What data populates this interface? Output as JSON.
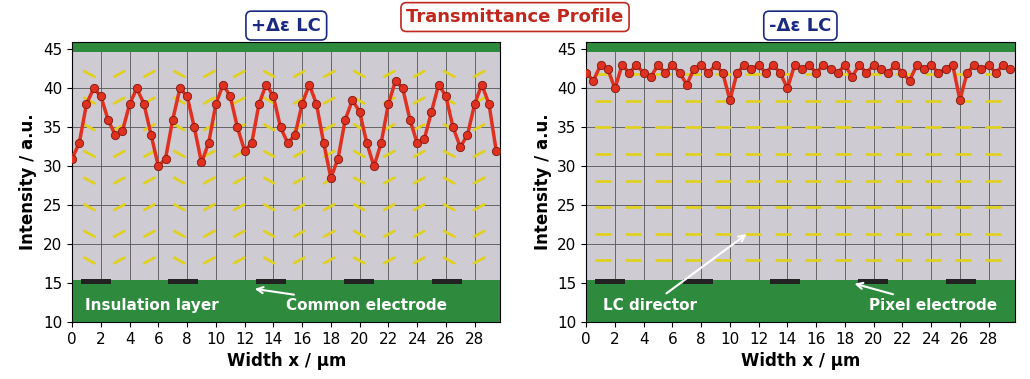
{
  "title": "Transmittance Profile",
  "chart_data": [
    {
      "type": "line",
      "title": "+Δε LC",
      "x_label": "Width x / µm",
      "y_label": "Intensity / a.u.",
      "annotations": [
        "Insulation layer",
        "Common electrode"
      ],
      "x": [
        0,
        0.5,
        1,
        1.5,
        2,
        2.5,
        3,
        3.5,
        4,
        4.5,
        5,
        5.5,
        6,
        6.5,
        7,
        7.5,
        8,
        8.5,
        9,
        9.5,
        10,
        10.5,
        11,
        11.5,
        12,
        12.5,
        13,
        13.5,
        14,
        14.5,
        15,
        15.5,
        16,
        16.5,
        17,
        17.5,
        18,
        18.5,
        19,
        19.5,
        20,
        20.5,
        21,
        21.5,
        22,
        22.5,
        23,
        23.5,
        24,
        24.5,
        25,
        25.5,
        26,
        26.5,
        27,
        27.5,
        28,
        28.5,
        29,
        29.5
      ],
      "series": [
        {
          "name": "Transmittance",
          "color": "#e03020",
          "marker": "o",
          "line_style": "solid",
          "values": [
            31,
            33,
            38,
            40,
            39,
            36,
            34,
            34.5,
            38,
            40,
            38,
            34,
            30,
            31,
            36,
            40,
            39,
            35,
            30.5,
            33,
            38,
            40.5,
            39,
            35,
            32,
            33,
            38,
            40.5,
            39,
            35,
            33,
            34,
            38,
            40.5,
            38,
            33,
            28.5,
            31,
            36,
            38.5,
            37,
            33,
            30,
            33,
            38,
            41,
            40,
            36,
            33,
            33.5,
            37,
            40.5,
            39,
            35,
            32.5,
            34,
            38,
            40.5,
            38,
            32
          ]
        }
      ],
      "xlim": [
        0,
        29.8
      ],
      "xticks": [
        0,
        2,
        4,
        6,
        8,
        10,
        12,
        14,
        16,
        18,
        20,
        22,
        24,
        26,
        28
      ],
      "ylim": [
        10,
        46
      ],
      "yticks": [
        10,
        15,
        20,
        25,
        30,
        35,
        40,
        45
      ],
      "grid": true
    },
    {
      "type": "line",
      "title": "-Δε LC",
      "x_label": "Width x / µm",
      "y_label": "Intensity / a.u.",
      "annotations": [
        "LC director",
        "Pixel electrode"
      ],
      "x": [
        0,
        0.5,
        1,
        1.5,
        2,
        2.5,
        3,
        3.5,
        4,
        4.5,
        5,
        5.5,
        6,
        6.5,
        7,
        7.5,
        8,
        8.5,
        9,
        9.5,
        10,
        10.5,
        11,
        11.5,
        12,
        12.5,
        13,
        13.5,
        14,
        14.5,
        15,
        15.5,
        16,
        16.5,
        17,
        17.5,
        18,
        18.5,
        19,
        19.5,
        20,
        20.5,
        21,
        21.5,
        22,
        22.5,
        23,
        23.5,
        24,
        24.5,
        25,
        25.5,
        26,
        26.5,
        27,
        27.5,
        28,
        28.5,
        29,
        29.5
      ],
      "series": [
        {
          "name": "Transmittance",
          "color": "#e03020",
          "marker": "o",
          "line_style": "solid",
          "values": [
            42,
            41,
            43,
            42.5,
            40,
            43,
            42,
            43,
            42,
            41.5,
            43,
            42,
            43,
            42,
            40.5,
            42.5,
            43,
            42,
            43,
            42,
            38.5,
            42,
            43,
            42.5,
            43,
            42,
            43,
            42,
            40,
            43,
            42.5,
            43,
            42,
            43,
            42.5,
            42,
            43,
            41.5,
            43,
            42,
            43,
            42.5,
            42,
            43,
            42,
            41,
            43,
            42.5,
            43,
            42,
            42.5,
            43,
            38.5,
            42,
            43,
            42.5,
            43,
            42,
            43,
            42.5
          ]
        }
      ],
      "xlim": [
        0,
        29.8
      ],
      "xticks": [
        0,
        2,
        4,
        6,
        8,
        10,
        12,
        14,
        16,
        18,
        20,
        22,
        24,
        26,
        28
      ],
      "ylim": [
        10,
        46
      ],
      "yticks": [
        10,
        15,
        20,
        25,
        30,
        35,
        40,
        45
      ],
      "grid": true
    }
  ]
}
